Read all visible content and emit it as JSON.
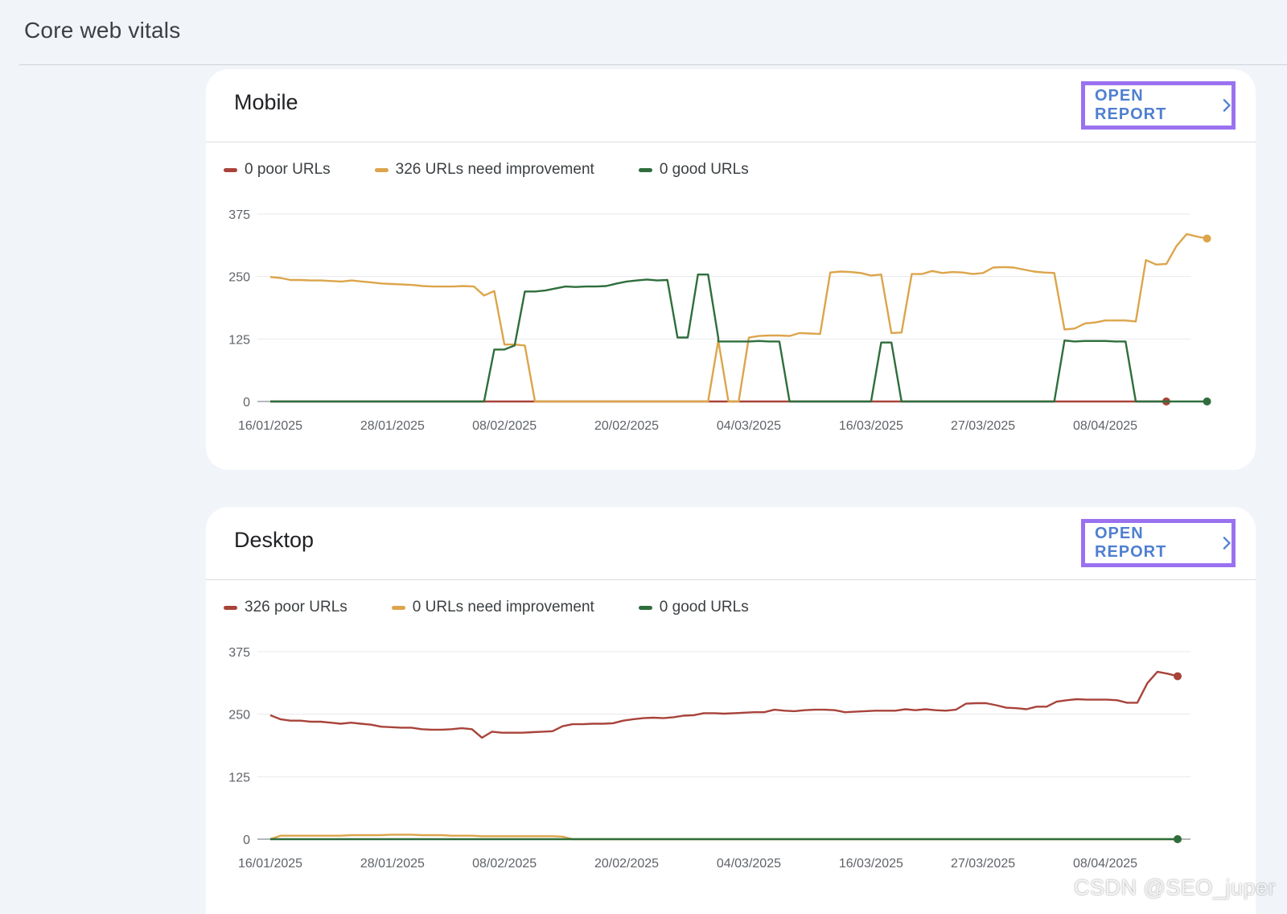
{
  "page": {
    "title": "Core web vitals"
  },
  "colors": {
    "poor": "#a8433a",
    "needs_improvement": "#dca54b",
    "good": "#2f6e3c",
    "button_border": "#9a72f0",
    "button_text": "#4f7fd0"
  },
  "cards": [
    {
      "title": "Mobile",
      "open_report_label": "OPEN REPORT",
      "legend": [
        "0 poor URLs",
        "326 URLs need improvement",
        "0 good URLs"
      ],
      "chart_data": {
        "type": "line",
        "x_ticks": [
          "16/01/2025",
          "28/01/2025",
          "08/02/2025",
          "20/02/2025",
          "04/03/2025",
          "16/03/2025",
          "27/03/2025",
          "08/04/2025"
        ],
        "y_ticks": [
          0,
          125,
          250,
          375
        ],
        "ylim": [
          0,
          375
        ],
        "x_range": [
          "16/01/2025",
          "14/04/2025"
        ],
        "series": [
          {
            "name": "0 poor URLs",
            "color": "#a8433a",
            "points": [
              [
                "16/01/2025",
                0
              ],
              [
                "14/04/2025",
                0
              ]
            ]
          },
          {
            "name": "326 URLs need improvement",
            "color": "#dca54b",
            "points": [
              [
                "16/01/2025",
                249
              ],
              [
                "17/01/2025",
                247
              ],
              [
                "18/01/2025",
                243
              ],
              [
                "19/01/2025",
                243
              ],
              [
                "20/01/2025",
                242
              ],
              [
                "21/01/2025",
                242
              ],
              [
                "22/01/2025",
                241
              ],
              [
                "23/01/2025",
                240
              ],
              [
                "24/01/2025",
                242
              ],
              [
                "25/01/2025",
                240
              ],
              [
                "26/01/2025",
                238
              ],
              [
                "27/01/2025",
                236
              ],
              [
                "28/01/2025",
                235
              ],
              [
                "29/01/2025",
                234
              ],
              [
                "30/01/2025",
                233
              ],
              [
                "31/01/2025",
                231
              ],
              [
                "01/02/2025",
                230
              ],
              [
                "02/02/2025",
                230
              ],
              [
                "03/02/2025",
                230
              ],
              [
                "04/02/2025",
                231
              ],
              [
                "05/02/2025",
                230
              ],
              [
                "06/02/2025",
                212
              ],
              [
                "07/02/2025",
                221
              ],
              [
                "08/02/2025",
                114
              ],
              [
                "09/02/2025",
                114
              ],
              [
                "10/02/2025",
                112
              ],
              [
                "11/02/2025",
                0
              ],
              [
                "28/02/2025",
                0
              ],
              [
                "29/02/2025",
                122
              ],
              [
                "01/03/2025",
                122
              ],
              [
                "02/03/2025",
                0
              ],
              [
                "03/03/2025",
                0
              ],
              [
                "04/03/2025",
                128
              ],
              [
                "05/03/2025",
                131
              ],
              [
                "06/03/2025",
                132
              ],
              [
                "07/03/2025",
                132
              ],
              [
                "08/03/2025",
                131
              ],
              [
                "09/03/2025",
                137
              ],
              [
                "10/03/2025",
                136
              ],
              [
                "11/03/2025",
                135
              ],
              [
                "12/03/2025",
                258
              ],
              [
                "13/03/2025",
                260
              ],
              [
                "14/03/2025",
                259
              ],
              [
                "15/03/2025",
                257
              ],
              [
                "16/03/2025",
                252
              ],
              [
                "17/03/2025",
                254
              ],
              [
                "18/03/2025",
                137
              ],
              [
                "19/03/2025",
                138
              ],
              [
                "20/03/2025",
                255
              ],
              [
                "21/03/2025",
                255
              ],
              [
                "22/03/2025",
                261
              ],
              [
                "23/03/2025",
                257
              ],
              [
                "24/03/2025",
                259
              ],
              [
                "25/03/2025",
                258
              ],
              [
                "26/03/2025",
                255
              ],
              [
                "27/03/2025",
                257
              ],
              [
                "28/03/2025",
                268
              ],
              [
                "29/03/2025",
                269
              ],
              [
                "30/03/2025",
                268
              ],
              [
                "31/03/2025",
                264
              ],
              [
                "01/04/2025",
                260
              ],
              [
                "02/04/2025",
                258
              ],
              [
                "03/04/2025",
                257
              ],
              [
                "04/04/2025",
                144
              ],
              [
                "05/04/2025",
                146
              ],
              [
                "06/04/2025",
                156
              ],
              [
                "07/04/2025",
                158
              ],
              [
                "08/04/2025",
                162
              ],
              [
                "09/04/2025",
                162
              ],
              [
                "10/04/2025",
                162
              ],
              [
                "11/04/2025",
                160
              ],
              [
                "12/04/2025",
                283
              ],
              [
                "13/04/2025",
                274
              ],
              [
                "14/04/2025",
                275
              ],
              [
                "15/04/2025",
                311
              ],
              [
                "16/04/2025",
                335
              ],
              [
                "17/04/2025",
                330
              ],
              [
                "18/04/2025",
                326
              ]
            ]
          },
          {
            "name": "0 good URLs",
            "color": "#2f6e3c",
            "points": [
              [
                "16/01/2025",
                0
              ],
              [
                "06/02/2025",
                0
              ],
              [
                "07/02/2025",
                104
              ],
              [
                "08/02/2025",
                104
              ],
              [
                "09/02/2025",
                112
              ],
              [
                "10/02/2025",
                220
              ],
              [
                "11/02/2025",
                220
              ],
              [
                "12/02/2025",
                222
              ],
              [
                "13/02/2025",
                226
              ],
              [
                "14/02/2025",
                230
              ],
              [
                "15/02/2025",
                229
              ],
              [
                "16/02/2025",
                230
              ],
              [
                "17/02/2025",
                230
              ],
              [
                "18/02/2025",
                231
              ],
              [
                "19/02/2025",
                236
              ],
              [
                "20/02/2025",
                240
              ],
              [
                "21/02/2025",
                242
              ],
              [
                "22/02/2025",
                244
              ],
              [
                "23/02/2025",
                242
              ],
              [
                "24/02/2025",
                243
              ],
              [
                "25/02/2025",
                128
              ],
              [
                "26/02/2025",
                128
              ],
              [
                "27/02/2025",
                254
              ],
              [
                "28/02/2025",
                254
              ],
              [
                "29/02/2025",
                127
              ],
              [
                "01/03/2025",
                120
              ],
              [
                "02/03/2025",
                120
              ],
              [
                "03/03/2025",
                120
              ],
              [
                "04/03/2025",
                120
              ],
              [
                "05/03/2025",
                121
              ],
              [
                "06/03/2025",
                120
              ],
              [
                "07/03/2025",
                120
              ],
              [
                "08/03/2025",
                0
              ],
              [
                "16/03/2025",
                0
              ],
              [
                "17/03/2025",
                118
              ],
              [
                "18/03/2025",
                118
              ],
              [
                "19/03/2025",
                0
              ],
              [
                "03/04/2025",
                0
              ],
              [
                "04/04/2025",
                122
              ],
              [
                "05/04/2025",
                120
              ],
              [
                "06/04/2025",
                121
              ],
              [
                "07/04/2025",
                121
              ],
              [
                "08/04/2025",
                121
              ],
              [
                "09/04/2025",
                120
              ],
              [
                "10/04/2025",
                120
              ],
              [
                "11/04/2025",
                0
              ],
              [
                "18/04/2025",
                0
              ]
            ]
          }
        ]
      }
    },
    {
      "title": "Desktop",
      "open_report_label": "OPEN REPORT",
      "legend": [
        "326 poor URLs",
        "0 URLs need improvement",
        "0 good URLs"
      ],
      "chart_data": {
        "type": "line",
        "x_ticks": [
          "16/01/2025",
          "28/01/2025",
          "08/02/2025",
          "20/02/2025",
          "04/03/2025",
          "16/03/2025",
          "27/03/2025",
          "08/04/2025"
        ],
        "y_ticks": [
          0,
          125,
          250,
          375
        ],
        "ylim": [
          0,
          375
        ],
        "series": [
          {
            "name": "326 poor URLs",
            "color": "#a8433a",
            "points": [
              248,
              240,
              237,
              237,
              235,
              235,
              233,
              231,
              233,
              231,
              229,
              225,
              224,
              223,
              223,
              220,
              219,
              219,
              220,
              222,
              220,
              203,
              215,
              213,
              213,
              213,
              214,
              215,
              216,
              226,
              230,
              230,
              231,
              231,
              232,
              237,
              240,
              242,
              243,
              242,
              244,
              247,
              248,
              252,
              252,
              251,
              252,
              253,
              254,
              254,
              259,
              257,
              256,
              258,
              259,
              259,
              258,
              254,
              255,
              256,
              257,
              257,
              257,
              260,
              258,
              260,
              258,
              257,
              259,
              271,
              272,
              272,
              268,
              263,
              262,
              260,
              265,
              265,
              275,
              278,
              280,
              279,
              279,
              279,
              278,
              273,
              273,
              312,
              335,
              331,
              326
            ]
          },
          {
            "name": "0 URLs need improvement",
            "color": "#dca54b",
            "points": [
              0,
              7,
              7,
              7,
              7,
              7,
              7,
              7,
              8,
              8,
              8,
              8,
              9,
              9,
              9,
              8,
              8,
              8,
              7,
              7,
              7,
              6,
              6,
              6,
              6,
              6,
              6,
              6,
              6,
              5,
              0,
              0,
              0,
              0,
              0,
              0,
              0,
              0,
              0,
              0,
              0,
              0,
              0,
              0,
              0,
              0,
              0,
              0,
              0,
              0,
              0,
              0,
              0,
              0,
              0,
              0,
              0,
              0,
              0,
              0,
              0,
              0,
              0,
              0,
              0,
              0,
              0,
              0,
              0,
              0,
              0,
              0,
              0,
              0,
              0,
              0,
              0,
              0,
              0,
              0,
              0,
              0,
              0,
              0,
              0,
              0,
              0,
              0,
              0,
              0,
              0
            ]
          },
          {
            "name": "0 good URLs",
            "color": "#2f6e3c",
            "points": [
              0,
              0,
              0,
              0,
              0,
              0,
              0,
              0,
              0,
              0,
              0,
              0,
              0,
              0,
              0,
              0,
              0,
              0,
              0,
              0,
              0,
              0,
              0,
              0,
              0,
              0,
              0,
              0,
              0,
              0,
              0,
              0,
              0,
              0,
              0,
              0,
              0,
              0,
              0,
              0,
              0,
              0,
              0,
              0,
              0,
              0,
              0,
              0,
              0,
              0,
              0,
              0,
              0,
              0,
              0,
              0,
              0,
              0,
              0,
              0,
              0,
              0,
              0,
              0,
              0,
              0,
              0,
              0,
              0,
              0,
              0,
              0,
              0,
              0,
              0,
              0,
              0,
              0,
              0,
              0,
              0,
              0,
              0,
              0,
              0,
              0,
              0,
              0,
              0,
              0,
              0
            ]
          }
        ]
      }
    }
  ],
  "watermark": "CSDN @SEO_juper"
}
